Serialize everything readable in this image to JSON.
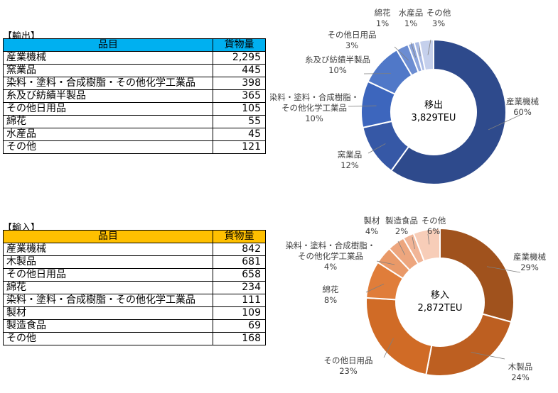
{
  "export": {
    "section_title": "【輸出】",
    "headers": {
      "item": "品目",
      "volume": "貨物量"
    },
    "rows": [
      {
        "item": "産業機械",
        "volume": "2,295"
      },
      {
        "item": "窯業品",
        "volume": "445"
      },
      {
        "item": "染料・塗料・合成樹脂・その他化学工業品",
        "volume": "398"
      },
      {
        "item": "糸及び紡績半製品",
        "volume": "365"
      },
      {
        "item": "その他日用品",
        "volume": "105"
      },
      {
        "item": "綿花",
        "volume": "55"
      },
      {
        "item": "水産品",
        "volume": "45"
      },
      {
        "item": "その他",
        "volume": "121"
      }
    ]
  },
  "import": {
    "section_title": "【輸入】",
    "headers": {
      "item": "品目",
      "volume": "貨物量"
    },
    "rows": [
      {
        "item": "産業機械",
        "volume": "842"
      },
      {
        "item": "木製品",
        "volume": "681"
      },
      {
        "item": "その他日用品",
        "volume": "658"
      },
      {
        "item": "綿花",
        "volume": "234"
      },
      {
        "item": "染料・塗料・合成樹脂・その他化学工業品",
        "volume": "111"
      },
      {
        "item": "製材",
        "volume": "109"
      },
      {
        "item": "製造食品",
        "volume": "69"
      },
      {
        "item": "その他",
        "volume": "168"
      }
    ]
  },
  "chart_data": [
    {
      "type": "pie",
      "center_label": [
        "移出",
        "3,829TEU"
      ],
      "slices": [
        {
          "label": [
            "産業機械"
          ],
          "value": 2295,
          "pct": "60%",
          "color": "#2e4a8c"
        },
        {
          "label": [
            "窯業品"
          ],
          "value": 445,
          "pct": "12%",
          "color": "#3658a6"
        },
        {
          "label": [
            "染料・塗料・合成樹脂・",
            "その他化学工業品"
          ],
          "value": 398,
          "pct": "10%",
          "color": "#3d66bd"
        },
        {
          "label": [
            "糸及び紡績半製品"
          ],
          "value": 365,
          "pct": "10%",
          "color": "#5078c8"
        },
        {
          "label": [
            "その他日用品"
          ],
          "value": 105,
          "pct": "3%",
          "color": "#6c8dd2"
        },
        {
          "label": [
            "綿花"
          ],
          "value": 55,
          "pct": "1%",
          "color": "#8ea6dc"
        },
        {
          "label": [
            "水産品"
          ],
          "value": 45,
          "pct": "1%",
          "color": "#a9bae4"
        },
        {
          "label": [
            "その他"
          ],
          "value": 121,
          "pct": "3%",
          "color": "#c5d0ec"
        }
      ]
    },
    {
      "type": "pie",
      "center_label": [
        "移入",
        "2,872TEU"
      ],
      "slices": [
        {
          "label": [
            "産業機械"
          ],
          "value": 842,
          "pct": "29%",
          "color": "#a0521d"
        },
        {
          "label": [
            "木製品"
          ],
          "value": 681,
          "pct": "24%",
          "color": "#bd5f21"
        },
        {
          "label": [
            "その他日用品"
          ],
          "value": 658,
          "pct": "23%",
          "color": "#d06b26"
        },
        {
          "label": [
            "綿花"
          ],
          "value": 234,
          "pct": "8%",
          "color": "#e07d3a"
        },
        {
          "label": [
            "染料・塗料・合成樹脂・",
            "その他化学工業品"
          ],
          "value": 111,
          "pct": "4%",
          "color": "#e99968"
        },
        {
          "label": [
            "製材"
          ],
          "value": 109,
          "pct": "4%",
          "color": "#eda67e"
        },
        {
          "label": [
            "製造食品"
          ],
          "value": 69,
          "pct": "2%",
          "color": "#f1b597"
        },
        {
          "label": [
            "その他"
          ],
          "value": 168,
          "pct": "6%",
          "color": "#f7cdb8"
        }
      ]
    }
  ]
}
